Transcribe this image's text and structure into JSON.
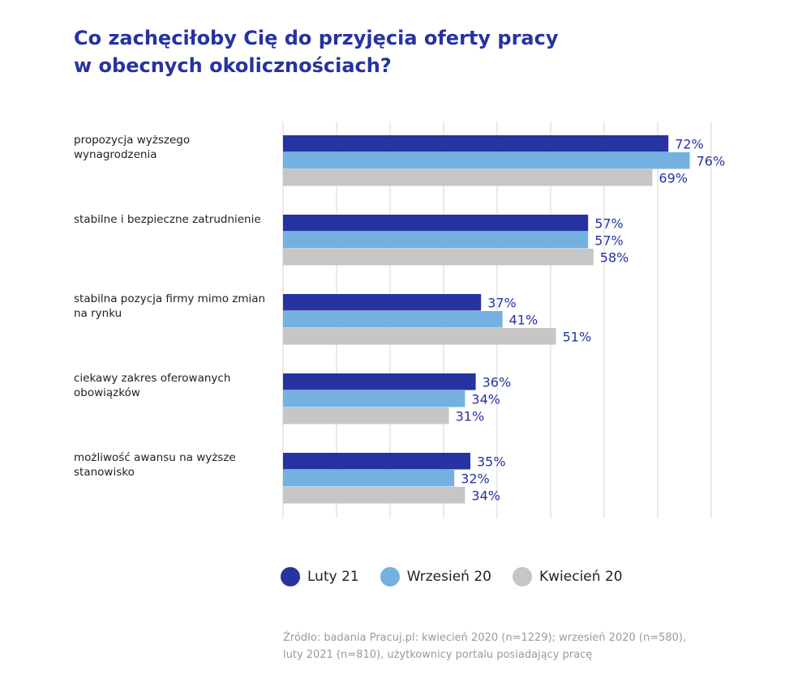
{
  "title_lines": [
    "Co zachęciłoby Cię do przyjęcia oferty pracy",
    "w obecnych okolicznościach?"
  ],
  "chart_data": {
    "type": "bar",
    "orientation": "horizontal",
    "categories": [
      [
        "propozycja wyższego",
        "wynagrodzenia"
      ],
      [
        "stabilne i bezpieczne zatrudnienie"
      ],
      [
        "stabilna pozycja firmy mimo zmian",
        "na rynku"
      ],
      [
        "ciekawy zakres oferowanych",
        "obowiązków"
      ],
      [
        "możliwość awansu na wyższe",
        "stanowisko"
      ]
    ],
    "series": [
      {
        "name": "Luty 21",
        "color": "#2633a0",
        "values": [
          72,
          57,
          37,
          36,
          35
        ]
      },
      {
        "name": "Wrzesień 20",
        "color": "#74b1e0",
        "values": [
          76,
          57,
          41,
          34,
          32
        ]
      },
      {
        "name": "Kwiecień 20",
        "color": "#c6c6c6",
        "values": [
          69,
          58,
          51,
          31,
          34
        ]
      }
    ],
    "value_suffix": "%",
    "xlim": [
      0,
      80
    ],
    "grid": true,
    "legend_position": "bottom"
  },
  "source_lines": [
    "Źródło: badania Pracuj.pl: kwiecień 2020 (n=1229); wrzesień 2020 (n=580),",
    "luty 2021 (n=810), użytkownicy portalu posiadający pracę"
  ]
}
